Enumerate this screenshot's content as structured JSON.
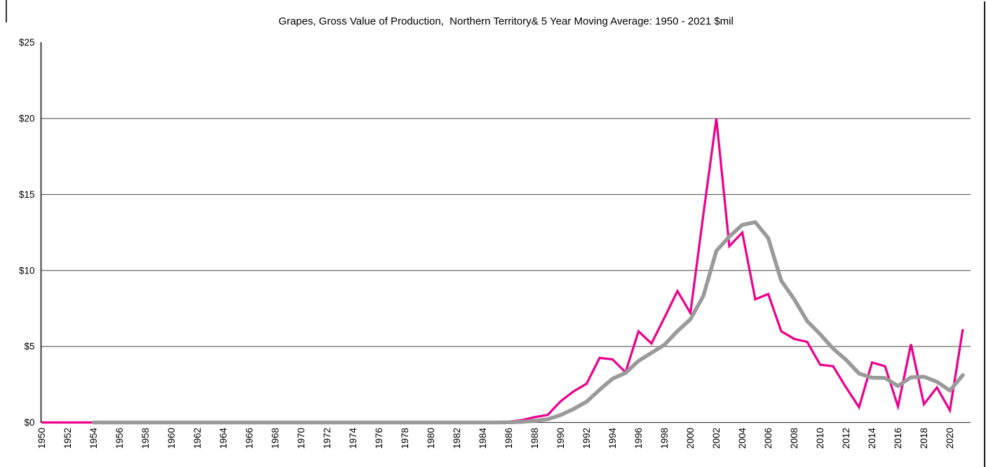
{
  "chart_data": {
    "type": "line",
    "title": "Grapes, Gross Value of Production,  Northern Territory& 5 Year Moving Average: 1950 - 2021 $mil",
    "xlabel": "",
    "ylabel": "",
    "ylim": [
      0,
      25
    ],
    "grid": "horizontal",
    "legend": "none",
    "x": [
      1950,
      1951,
      1952,
      1953,
      1954,
      1955,
      1956,
      1957,
      1958,
      1959,
      1960,
      1961,
      1962,
      1963,
      1964,
      1965,
      1966,
      1967,
      1968,
      1969,
      1970,
      1971,
      1972,
      1973,
      1974,
      1975,
      1976,
      1977,
      1978,
      1979,
      1980,
      1981,
      1982,
      1983,
      1984,
      1985,
      1986,
      1987,
      1988,
      1989,
      1990,
      1991,
      1992,
      1993,
      1994,
      1995,
      1996,
      1997,
      1998,
      1999,
      2000,
      2001,
      2002,
      2003,
      2004,
      2005,
      2006,
      2007,
      2008,
      2009,
      2010,
      2011,
      2012,
      2013,
      2014,
      2015,
      2016,
      2017,
      2018,
      2019,
      2020,
      2021
    ],
    "series": [
      {
        "name": "Grapes, Gross Value of Production ($mil)",
        "color": "#EC008C",
        "values": [
          0,
          0,
          0,
          0,
          0,
          0,
          0,
          0,
          0,
          0,
          0,
          0,
          0,
          0,
          0,
          0,
          0,
          0,
          0,
          0,
          0,
          0,
          0,
          0,
          0,
          0,
          0,
          0,
          0,
          0,
          0,
          0,
          0,
          0,
          0,
          0,
          0.05,
          0.15,
          0.35,
          0.5,
          1.4,
          2.05,
          2.55,
          4.25,
          4.15,
          3.3,
          6.0,
          5.2,
          6.9,
          8.65,
          7.2,
          13.7,
          20.0,
          11.6,
          12.5,
          8.1,
          8.45,
          6.0,
          5.5,
          5.3,
          3.8,
          3.7,
          2.3,
          1.0,
          3.95,
          3.7,
          1.05,
          5.15,
          1.2,
          2.3,
          0.8,
          6.15
        ]
      },
      {
        "name": "5 Year Moving Average ($mil)",
        "color": "#9A9A9A",
        "values": [
          null,
          null,
          null,
          null,
          0,
          0,
          0,
          0,
          0,
          0,
          0,
          0,
          0,
          0,
          0,
          0,
          0,
          0,
          0,
          0,
          0,
          0,
          0,
          0,
          0,
          0,
          0,
          0,
          0,
          0,
          0,
          0,
          0,
          0,
          0,
          0,
          0.01,
          0.04,
          0.11,
          0.21,
          0.49,
          0.89,
          1.37,
          2.15,
          2.88,
          3.26,
          4.05,
          4.58,
          5.11,
          6.01,
          6.79,
          8.33,
          11.29,
          12.23,
          13.0,
          13.18,
          12.13,
          9.33,
          8.11,
          6.67,
          5.81,
          4.86,
          4.12,
          3.22,
          2.95,
          2.93,
          2.4,
          2.97,
          3.01,
          2.68,
          2.1,
          3.12
        ]
      }
    ],
    "y_ticks": [
      {
        "value": 0,
        "label": "$0"
      },
      {
        "value": 5,
        "label": "$5"
      },
      {
        "value": 10,
        "label": "$10"
      },
      {
        "value": 15,
        "label": "$15"
      },
      {
        "value": 20,
        "label": "$20"
      },
      {
        "value": 25,
        "label": "$25"
      }
    ],
    "x_tick_labels": [
      "1950",
      "1952",
      "1954",
      "1956",
      "1958",
      "1960",
      "1962",
      "1964",
      "1966",
      "1968",
      "1970",
      "1972",
      "1974",
      "1976",
      "1978",
      "1980",
      "1982",
      "1984",
      "1986",
      "1988",
      "1990",
      "1992",
      "1994",
      "1996",
      "1998",
      "2000",
      "2002",
      "2004",
      "2006",
      "2008",
      "2010",
      "2012",
      "2014",
      "2016",
      "2018",
      "2020"
    ]
  },
  "style": {
    "gridline_color": "#454545",
    "axis_color": "#2f2f2f",
    "text_color": "#000000",
    "background": "#ffffff"
  }
}
